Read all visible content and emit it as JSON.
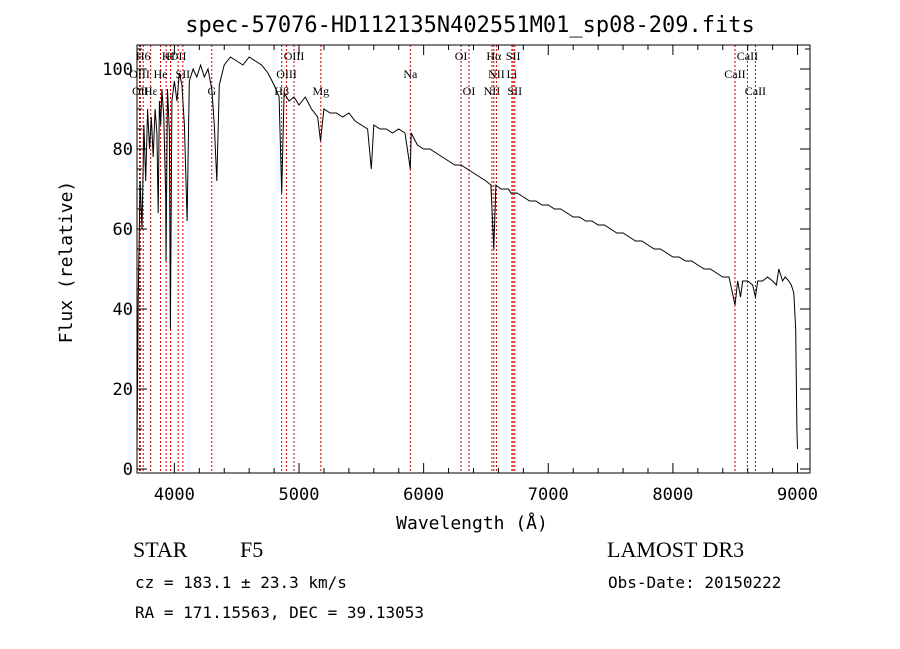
{
  "chart_data": {
    "type": "line",
    "title": "spec-57076-HD112135N402551M01_sp08-209.fits",
    "xlabel": "Wavelength (Å)",
    "ylabel": "Flux (relative)",
    "xlim": [
      3700,
      9100
    ],
    "ylim": [
      -1,
      106
    ],
    "xticks": [
      4000,
      5000,
      6000,
      7000,
      8000,
      9000
    ],
    "xtick_labels": [
      "4000",
      "5000",
      "6000",
      "7000",
      "8000",
      "9000"
    ],
    "yticks": [
      0,
      20,
      40,
      60,
      80,
      100
    ],
    "ytick_labels": [
      "0",
      "20",
      "40",
      "60",
      "80",
      "100"
    ],
    "series": [
      {
        "name": "flux",
        "points": [
          [
            3700,
            5
          ],
          [
            3710,
            42
          ],
          [
            3725,
            72
          ],
          [
            3740,
            60
          ],
          [
            3755,
            86
          ],
          [
            3770,
            72
          ],
          [
            3785,
            90
          ],
          [
            3800,
            80
          ],
          [
            3815,
            88
          ],
          [
            3830,
            78
          ],
          [
            3845,
            90
          ],
          [
            3860,
            84
          ],
          [
            3870,
            64
          ],
          [
            3880,
            92
          ],
          [
            3890,
            86
          ],
          [
            3900,
            95
          ],
          [
            3915,
            88
          ],
          [
            3930,
            68
          ],
          [
            3933,
            52
          ],
          [
            3945,
            95
          ],
          [
            3960,
            84
          ],
          [
            3968,
            35
          ],
          [
            3980,
            92
          ],
          [
            4000,
            97
          ],
          [
            4020,
            92
          ],
          [
            4040,
            99
          ],
          [
            4060,
            96
          ],
          [
            4080,
            86
          ],
          [
            4102,
            62
          ],
          [
            4120,
            97
          ],
          [
            4150,
            100
          ],
          [
            4180,
            98
          ],
          [
            4210,
            101
          ],
          [
            4240,
            98
          ],
          [
            4270,
            100
          ],
          [
            4300,
            95
          ],
          [
            4320,
            86
          ],
          [
            4340,
            72
          ],
          [
            4360,
            96
          ],
          [
            4400,
            101
          ],
          [
            4450,
            103
          ],
          [
            4500,
            102
          ],
          [
            4550,
            101
          ],
          [
            4600,
            103
          ],
          [
            4650,
            102
          ],
          [
            4700,
            101
          ],
          [
            4750,
            99
          ],
          [
            4800,
            96
          ],
          [
            4840,
            93
          ],
          [
            4861,
            69
          ],
          [
            4880,
            94
          ],
          [
            4920,
            92
          ],
          [
            4960,
            93
          ],
          [
            5000,
            91
          ],
          [
            5050,
            93
          ],
          [
            5100,
            90
          ],
          [
            5150,
            88
          ],
          [
            5172,
            82
          ],
          [
            5200,
            90
          ],
          [
            5250,
            89
          ],
          [
            5300,
            89
          ],
          [
            5350,
            88
          ],
          [
            5400,
            89
          ],
          [
            5450,
            87
          ],
          [
            5500,
            86
          ],
          [
            5550,
            85
          ],
          [
            5580,
            75
          ],
          [
            5600,
            86
          ],
          [
            5650,
            85
          ],
          [
            5700,
            85
          ],
          [
            5750,
            84
          ],
          [
            5800,
            85
          ],
          [
            5850,
            84
          ],
          [
            5893,
            75
          ],
          [
            5900,
            84
          ],
          [
            5950,
            81
          ],
          [
            6000,
            80
          ],
          [
            6050,
            80
          ],
          [
            6100,
            79
          ],
          [
            6150,
            78
          ],
          [
            6200,
            77
          ],
          [
            6250,
            76
          ],
          [
            6300,
            76
          ],
          [
            6350,
            75
          ],
          [
            6400,
            74
          ],
          [
            6450,
            73
          ],
          [
            6500,
            72
          ],
          [
            6540,
            71
          ],
          [
            6563,
            55
          ],
          [
            6580,
            71
          ],
          [
            6620,
            70
          ],
          [
            6680,
            70
          ],
          [
            6700,
            69
          ],
          [
            6750,
            69
          ],
          [
            6800,
            68
          ],
          [
            6850,
            67
          ],
          [
            6900,
            67
          ],
          [
            6950,
            66
          ],
          [
            7000,
            66
          ],
          [
            7050,
            65
          ],
          [
            7100,
            65
          ],
          [
            7150,
            64
          ],
          [
            7200,
            63
          ],
          [
            7250,
            63
          ],
          [
            7300,
            62
          ],
          [
            7350,
            62
          ],
          [
            7400,
            61
          ],
          [
            7450,
            61
          ],
          [
            7500,
            60
          ],
          [
            7550,
            59
          ],
          [
            7600,
            59
          ],
          [
            7650,
            58
          ],
          [
            7700,
            57
          ],
          [
            7750,
            57
          ],
          [
            7800,
            56
          ],
          [
            7850,
            55
          ],
          [
            7900,
            55
          ],
          [
            7950,
            54
          ],
          [
            8000,
            53
          ],
          [
            8050,
            53
          ],
          [
            8100,
            52
          ],
          [
            8150,
            52
          ],
          [
            8200,
            51
          ],
          [
            8250,
            50
          ],
          [
            8300,
            50
          ],
          [
            8350,
            49
          ],
          [
            8400,
            48
          ],
          [
            8450,
            48
          ],
          [
            8498,
            41
          ],
          [
            8520,
            47
          ],
          [
            8542,
            43
          ],
          [
            8560,
            47
          ],
          [
            8600,
            47
          ],
          [
            8640,
            46
          ],
          [
            8662,
            43
          ],
          [
            8680,
            47
          ],
          [
            8720,
            47
          ],
          [
            8760,
            48
          ],
          [
            8800,
            47
          ],
          [
            8830,
            46
          ],
          [
            8850,
            50
          ],
          [
            8880,
            47
          ],
          [
            8900,
            48
          ],
          [
            8930,
            47
          ],
          [
            8950,
            46
          ],
          [
            8970,
            44
          ],
          [
            8985,
            35
          ],
          [
            8995,
            10
          ],
          [
            9000,
            5
          ]
        ]
      }
    ],
    "line_markers": [
      {
        "label": "H6",
        "wavelength": 3750,
        "row": 0
      },
      {
        "label": "K",
        "wavelength": 3934,
        "row": 0
      },
      {
        "label": "H",
        "wavelength": 3969,
        "row": 0
      },
      {
        "label": "OII",
        "wavelength": 4030,
        "row": 0
      },
      {
        "label": "OIII",
        "wavelength": 4960,
        "row": 0
      },
      {
        "label": "OI",
        "wavelength": 6300,
        "row": 0
      },
      {
        "label": "Hα",
        "wavelength": 6563,
        "row": 0
      },
      {
        "label": "SII",
        "wavelength": 6718,
        "row": 0
      },
      {
        "label": "CaII",
        "wavelength": 8598,
        "row": 0
      },
      {
        "label": "OIII",
        "wavelength": 3720,
        "row": 1
      },
      {
        "label": "He",
        "wavelength": 3889,
        "row": 1
      },
      {
        "label": "SII",
        "wavelength": 4068,
        "row": 1
      },
      {
        "label": "OIII",
        "wavelength": 4900,
        "row": 1
      },
      {
        "label": "Na",
        "wavelength": 5893,
        "row": 1
      },
      {
        "label": "NII",
        "wavelength": 6584,
        "row": 1
      },
      {
        "label": "Li",
        "wavelength": 6708,
        "row": 1
      },
      {
        "label": "CaII",
        "wavelength": 8498,
        "row": 1
      },
      {
        "label": "OII",
        "wavelength": 3727,
        "row": 2
      },
      {
        "label": "Hε",
        "wavelength": 3810,
        "row": 2
      },
      {
        "label": "G",
        "wavelength": 4300,
        "row": 2
      },
      {
        "label": "Hβ",
        "wavelength": 4861,
        "row": 2
      },
      {
        "label": "Mg",
        "wavelength": 5175,
        "row": 2
      },
      {
        "label": "OI",
        "wavelength": 6364,
        "row": 2
      },
      {
        "label": "NII",
        "wavelength": 6548,
        "row": 2
      },
      {
        "label": "SII",
        "wavelength": 6731,
        "row": 2
      },
      {
        "label": "CaII",
        "wavelength": 8662,
        "row": 2
      }
    ],
    "marker_color": "#cc0000"
  },
  "info": {
    "class_label": "STAR",
    "subclass": "F5",
    "survey": "LAMOST DR3",
    "cz_text": "cz = 183.1 ± 23.3 km/s",
    "obs_date_text": "Obs-Date: 20150222",
    "radec_text": "RA = 171.15563, DEC =  39.13053"
  }
}
